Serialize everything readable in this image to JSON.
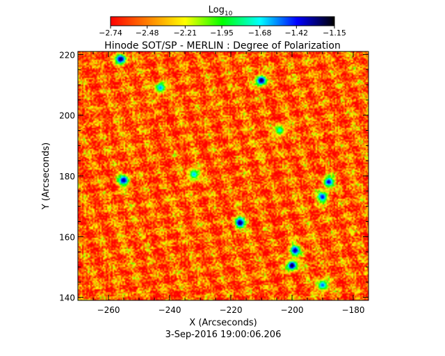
{
  "chart_data": {
    "type": "heatmap",
    "title": "Hinode SOT/SP - MERLIN : Degree of Polarization",
    "subtitle": "3-Sep-2016 19:00:06.206",
    "xlabel": "X (Arcseconds)",
    "ylabel": "Y (Arcseconds)",
    "xlim": [
      -270,
      -175
    ],
    "ylim": [
      139,
      221
    ],
    "x_ticks": [
      -260,
      -240,
      -220,
      -200,
      -180
    ],
    "x_tick_labels": [
      "−260",
      "−240",
      "−220",
      "−200",
      "−180"
    ],
    "y_ticks": [
      140,
      160,
      180,
      200,
      220
    ],
    "y_tick_labels": [
      "140",
      "160",
      "180",
      "200",
      "220"
    ],
    "colorbar": {
      "label_base": "Log",
      "label_sub": "10",
      "range": [
        -2.74,
        -1.15
      ],
      "ticks": [
        -2.74,
        -2.48,
        -2.21,
        -1.95,
        -1.68,
        -1.42,
        -1.15
      ],
      "tick_labels": [
        "−2.74",
        "−2.48",
        "−2.21",
        "−1.95",
        "−1.68",
        "−1.42",
        "−1.15"
      ],
      "colormap": [
        "#ff0000",
        "#ff8000",
        "#ffff00",
        "#00ff00",
        "#00ffff",
        "#0000ff",
        "#000000"
      ]
    },
    "background_level": -2.55,
    "strong_polarization_regions": [
      {
        "x": -256,
        "y": 218.5,
        "value": -1.25
      },
      {
        "x": -210,
        "y": 211.5,
        "value": -1.2
      },
      {
        "x": -255,
        "y": 178.5,
        "value": -1.3
      },
      {
        "x": -217,
        "y": 164.5,
        "value": -1.22
      },
      {
        "x": -200,
        "y": 150.5,
        "value": -1.18
      },
      {
        "x": -199,
        "y": 155.5,
        "value": -1.3
      },
      {
        "x": -190,
        "y": 173,
        "value": -1.4
      },
      {
        "x": -188,
        "y": 178,
        "value": -1.35
      },
      {
        "x": -243,
        "y": 209,
        "value": -1.55
      },
      {
        "x": -232,
        "y": 180.5,
        "value": -1.6
      },
      {
        "x": -190,
        "y": 144,
        "value": -1.5
      },
      {
        "x": -204,
        "y": 195,
        "value": -1.7
      }
    ]
  }
}
